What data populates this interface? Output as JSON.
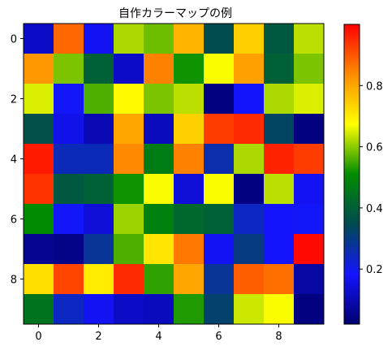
{
  "chart_data": {
    "type": "heatmap",
    "title": "自作カラーマップの例",
    "xlabel": "",
    "ylabel": "",
    "x_ticks": [
      "0",
      "2",
      "4",
      "6",
      "8"
    ],
    "y_ticks": [
      "0",
      "2",
      "4",
      "6",
      "8"
    ],
    "colorbar": {
      "range": [
        0.02,
        1.0
      ],
      "ticks": [
        "0.2",
        "0.4",
        "0.6",
        "0.8"
      ],
      "tick_values": [
        0.2,
        0.4,
        0.6,
        0.8
      ]
    },
    "colormap_stops": [
      "#00006e",
      "#1414ff",
      "#004b50",
      "#008c00",
      "#ffff00",
      "#ff8c00",
      "#ff0000"
    ],
    "rows": 10,
    "cols": 10,
    "values": [
      [
        0.12,
        0.88,
        0.17,
        0.62,
        0.58,
        0.78,
        0.35,
        0.74,
        0.38,
        0.63
      ],
      [
        0.82,
        0.59,
        0.4,
        0.12,
        0.85,
        0.52,
        0.67,
        0.81,
        0.4,
        0.59
      ],
      [
        0.65,
        0.19,
        0.56,
        0.68,
        0.59,
        0.63,
        0.04,
        0.18,
        0.62,
        0.65
      ],
      [
        0.36,
        0.16,
        0.1,
        0.8,
        0.11,
        0.74,
        0.93,
        0.95,
        0.33,
        0.04
      ],
      [
        0.97,
        0.25,
        0.25,
        0.84,
        0.47,
        0.85,
        0.26,
        0.62,
        0.96,
        0.93
      ],
      [
        0.94,
        0.38,
        0.4,
        0.52,
        0.67,
        0.14,
        0.67,
        0.04,
        0.63,
        0.17
      ],
      [
        0.51,
        0.19,
        0.14,
        0.61,
        0.48,
        0.42,
        0.4,
        0.24,
        0.18,
        0.19
      ],
      [
        0.06,
        0.05,
        0.28,
        0.56,
        0.71,
        0.86,
        0.17,
        0.3,
        0.18,
        0.99
      ],
      [
        0.72,
        0.92,
        0.7,
        0.95,
        0.54,
        0.8,
        0.28,
        0.89,
        0.87,
        0.08
      ],
      [
        0.45,
        0.24,
        0.17,
        0.12,
        0.11,
        0.53,
        0.32,
        0.64,
        0.67,
        0.04
      ]
    ]
  }
}
